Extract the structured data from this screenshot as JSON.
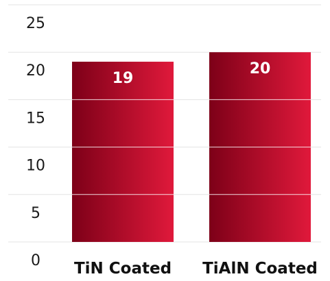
{
  "chart_data": {
    "type": "bar",
    "categories": [
      "TiN Coated",
      "TiAlN Coated"
    ],
    "values": [
      19,
      20
    ],
    "data_labels": [
      "19",
      "20"
    ],
    "ylim": [
      0,
      25
    ],
    "y_ticks": [
      0,
      5,
      10,
      15,
      20,
      25
    ],
    "y_tick_labels": [
      "0",
      "5",
      "10",
      "15",
      "20",
      "25"
    ],
    "grid": true,
    "legend": "none",
    "title": "",
    "xlabel": "",
    "ylabel": ""
  },
  "colors": {
    "bar_dark": "#7d0018",
    "bar_light": "#e0193b",
    "grid": "#e3e3e3",
    "bar_separator": "#ffffff"
  }
}
